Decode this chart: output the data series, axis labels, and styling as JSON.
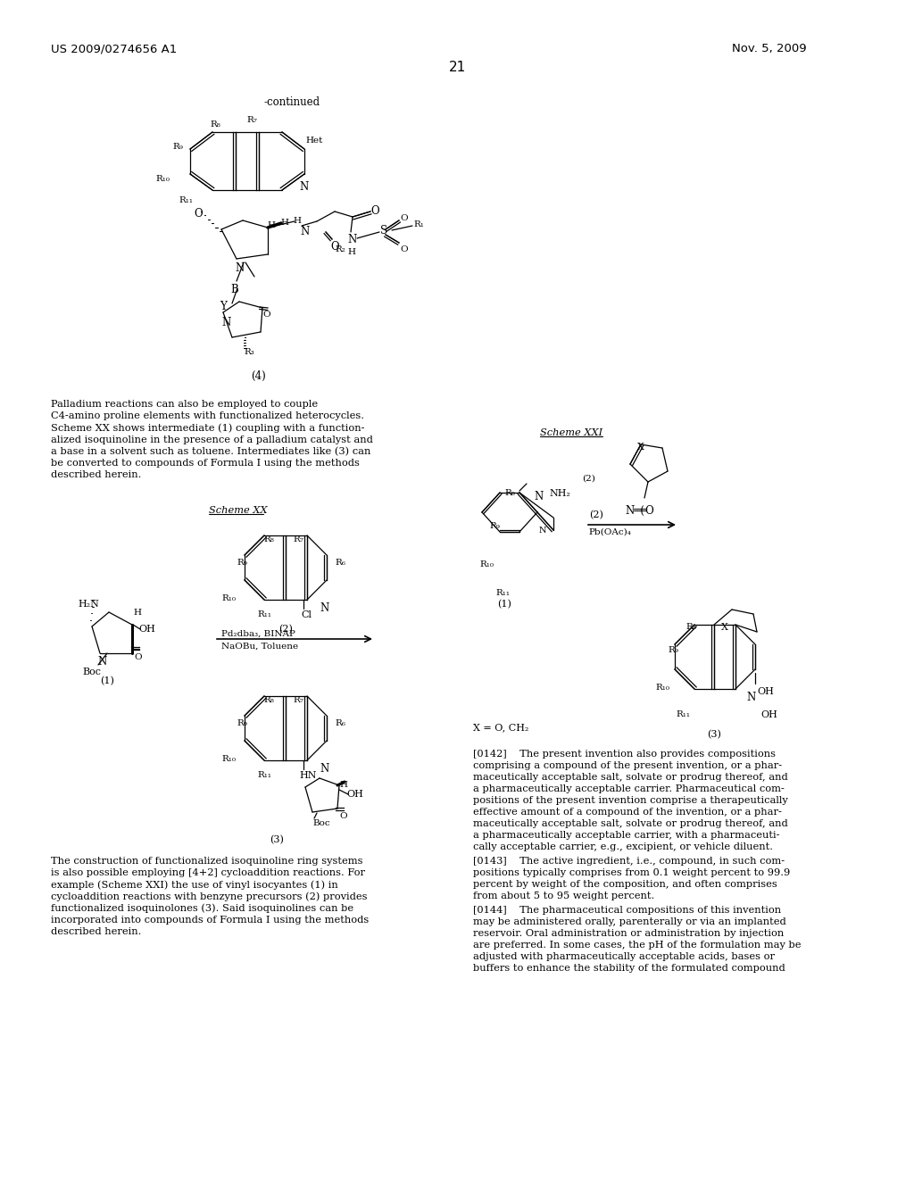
{
  "page_number": "21",
  "patent_number": "US 2009/0274656 A1",
  "patent_date": "Nov. 5, 2009",
  "background_color": "#ffffff",
  "para1_lines": [
    "Palladium reactions can also be employed to couple",
    "C4-amino proline elements with functionalized heterocycles.",
    "Scheme XX shows intermediate (1) coupling with a function-",
    "alized isoquinoline in the presence of a palladium catalyst and",
    "a base in a solvent such as toluene. Intermediates like (3) can",
    "be converted to compounds of Formula I using the methods",
    "described herein."
  ],
  "para2_lines": [
    "The construction of functionalized isoquinoline ring systems",
    "is also possible employing [4+2] cycloaddition reactions. For",
    "example (Scheme XXI) the use of vinyl isocyantes (1) in",
    "cycloaddition reactions with benzyne precursors (2) provides",
    "functionalized isoquinolones (3). Said isoquinolines can be",
    "incorporated into compounds of Formula I using the methods",
    "described herein."
  ],
  "p0142_lines": [
    "[0142]    The present invention also provides compositions",
    "comprising a compound of the present invention, or a phar-",
    "maceutically acceptable salt, solvate or prodrug thereof, and",
    "a pharmaceutically acceptable carrier. Pharmaceutical com-",
    "positions of the present invention comprise a therapeutically",
    "effective amount of a compound of the invention, or a phar-",
    "maceutically acceptable salt, solvate or prodrug thereof, and",
    "a pharmaceutically acceptable carrier, with a pharmaceuti-",
    "cally acceptable carrier, e.g., excipient, or vehicle diluent."
  ],
  "p0143_lines": [
    "[0143]    The active ingredient, i.e., compound, in such com-",
    "positions typically comprises from 0.1 weight percent to 99.9",
    "percent by weight of the composition, and often comprises",
    "from about 5 to 95 weight percent."
  ],
  "p0144_lines": [
    "[0144]    The pharmaceutical compositions of this invention",
    "may be administered orally, parenterally or via an implanted",
    "reservoir. Oral administration or administration by injection",
    "are preferred. In some cases, the pH of the formulation may be",
    "adjusted with pharmaceutically acceptable acids, bases or",
    "buffers to enhance the stability of the formulated compound"
  ]
}
